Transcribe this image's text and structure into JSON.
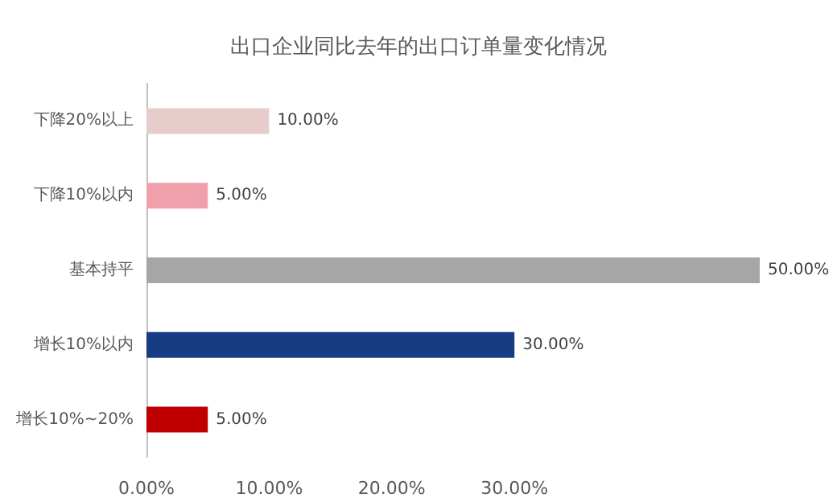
{
  "chart_data": {
    "type": "bar",
    "orientation": "horizontal",
    "title": "出口企业同比去年的出口订单量变化情况",
    "categories": [
      "下降20%以上",
      "下降10%以内",
      "基本持平",
      "增长10%以内",
      "增长10%~20%"
    ],
    "values": [
      10,
      5,
      50,
      30,
      5
    ],
    "colors": [
      "#e8cccc",
      "#f0a0aa",
      "#a6a6a6",
      "#173c84",
      "#c00000"
    ],
    "value_labels": [
      "10.00%",
      "5.00%",
      "50.00%",
      "30.00%",
      "5.00%"
    ],
    "xlim": [
      0,
      50
    ],
    "xticks": [
      {
        "value": 0,
        "label": "0.00%"
      },
      {
        "value": 10,
        "label": "10.00%"
      },
      {
        "value": 20,
        "label": "20.00%"
      },
      {
        "value": 30,
        "label": "30.00%"
      }
    ],
    "grid": false
  }
}
